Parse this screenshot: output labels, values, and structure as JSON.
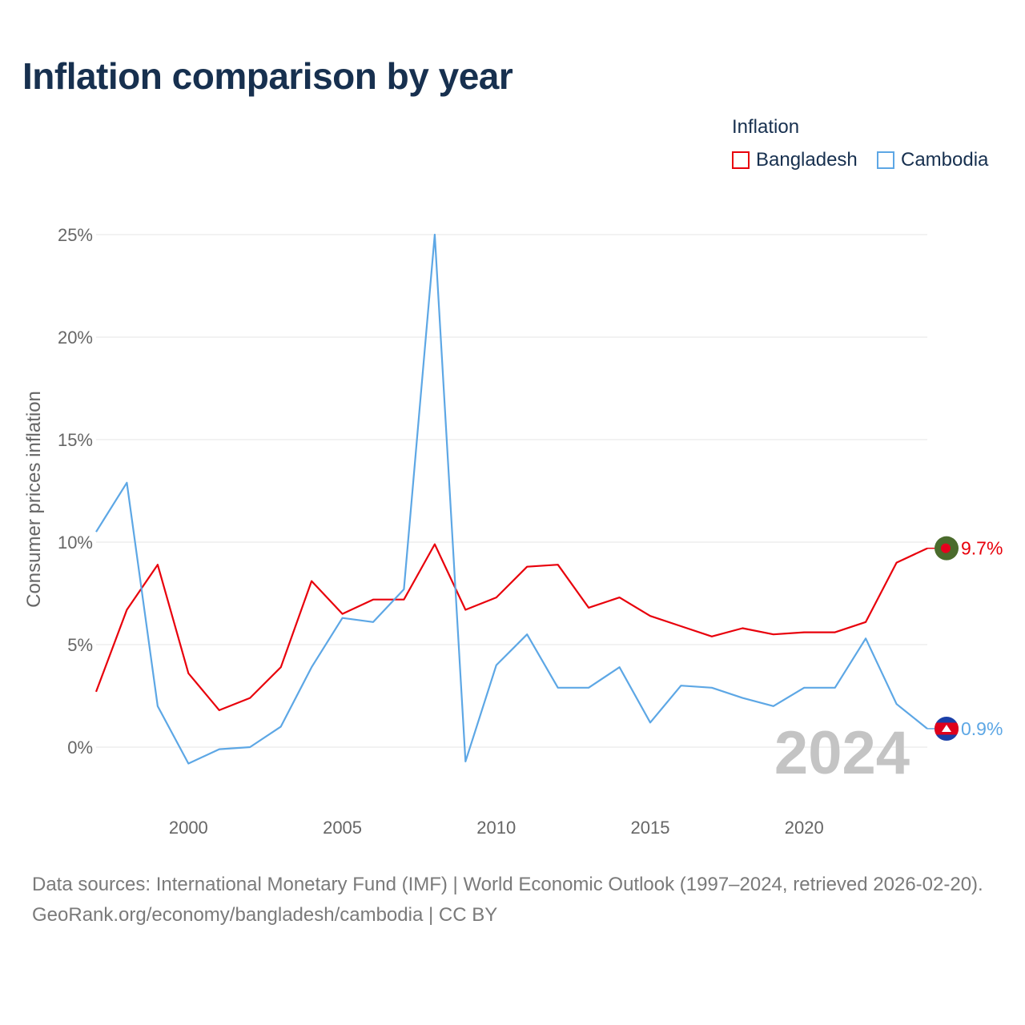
{
  "chart_data": {
    "type": "line",
    "title": "Inflation comparison by year",
    "ylabel": "Consumer prices inflation",
    "xlabel": "",
    "legend_title": "Inflation",
    "legend_position": "top-right",
    "x": [
      1997,
      1998,
      1999,
      2000,
      2001,
      2002,
      2003,
      2004,
      2005,
      2006,
      2007,
      2008,
      2009,
      2010,
      2011,
      2012,
      2013,
      2014,
      2015,
      2016,
      2017,
      2018,
      2019,
      2020,
      2021,
      2022,
      2023,
      2024
    ],
    "series": [
      {
        "name": "Bangladesh",
        "color": "#e8000b",
        "values": [
          2.7,
          6.7,
          8.9,
          3.6,
          1.8,
          2.4,
          3.9,
          8.1,
          6.5,
          7.2,
          7.2,
          9.9,
          6.7,
          7.3,
          8.8,
          8.9,
          6.8,
          7.3,
          6.4,
          5.9,
          5.4,
          5.8,
          5.5,
          5.6,
          5.6,
          6.1,
          9.0,
          9.7
        ],
        "end_label": "9.7%",
        "flag": "bangladesh"
      },
      {
        "name": "Cambodia",
        "color": "#5da7e5",
        "values": [
          10.5,
          12.9,
          2.0,
          -0.8,
          -0.1,
          0.0,
          1.0,
          3.9,
          6.3,
          6.1,
          7.7,
          25.0,
          -0.7,
          4.0,
          5.5,
          2.9,
          2.9,
          3.9,
          1.2,
          3.0,
          2.9,
          2.4,
          2.0,
          2.9,
          2.9,
          5.3,
          2.1,
          0.9
        ],
        "end_label": "0.9%",
        "flag": "cambodia"
      }
    ],
    "xlim": [
      1997,
      2024
    ],
    "ylim": [
      -2.5,
      25
    ],
    "xticks": [
      2000,
      2005,
      2010,
      2015,
      2020
    ],
    "xtick_labels": [
      "2000",
      "2005",
      "2010",
      "2015",
      "2020"
    ],
    "yticks": [
      0,
      5,
      10,
      15,
      20,
      25
    ],
    "ytick_labels": [
      "0%",
      "5%",
      "10%",
      "15%",
      "20%",
      "25%"
    ],
    "grid": true,
    "current_year": "2024"
  },
  "footer": {
    "sources": "Data sources: International Monetary Fund (IMF) | World Economic Outlook (1997–2024, retrieved 2026-02-20).",
    "credit": "GeoRank.org/economy/bangladesh/cambodia | CC BY"
  }
}
